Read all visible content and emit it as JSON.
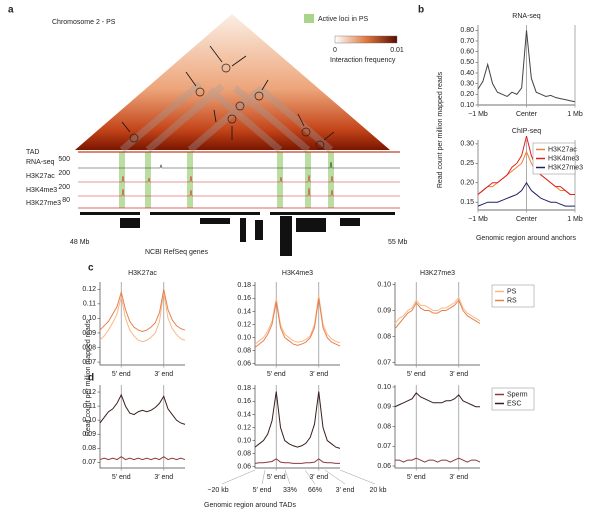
{
  "panel_labels": [
    "a",
    "b",
    "c",
    "d"
  ],
  "panel_a": {
    "title": "Chromosome 2 - PS",
    "legend": "Active loci in PS",
    "colorbar_min": "0",
    "colorbar_max": "0.01",
    "colorbar_label": "Interaction frequency",
    "tracks": [
      "TAD",
      "RNA-seq",
      "H3K27ac",
      "H3K4me3",
      "H3K27me3"
    ],
    "track_scales": [
      "500",
      "200",
      "200",
      "80"
    ],
    "start": "48 Mb",
    "end": "55 Mb",
    "genes": "NCBI RefSeq genes"
  },
  "panel_b": {
    "ylabel": "Read count per million mapped reads",
    "xlabel": "Genomic region around anchors"
  },
  "panel_cd": {
    "ylabel": "Read count per million mapped reads",
    "xlabel": "Genomic region around TADs",
    "region_ticks": [
      "−20 kb",
      "5′ end",
      "33%",
      "66%",
      "3′ end",
      "20 kb"
    ]
  },
  "chart_data": [
    {
      "type": "line",
      "title": "RNA-seq",
      "x": [
        0,
        2,
        4,
        6,
        8,
        10,
        12,
        14,
        16,
        18,
        20,
        22,
        24,
        26,
        28,
        30,
        32,
        34,
        36,
        38,
        40
      ],
      "xlim": [
        0,
        40
      ],
      "xticks": [
        {
          "value": 0,
          "label": "−1 Mb"
        },
        {
          "value": 20,
          "label": "Center"
        },
        {
          "value": 40,
          "label": "1 Mb"
        }
      ],
      "ylim": [
        0.1,
        0.85
      ],
      "yticks": [
        {
          "value": 0.1,
          "label": "0.10"
        },
        {
          "value": 0.2,
          "label": "0.20"
        },
        {
          "value": 0.3,
          "label": "0.30"
        },
        {
          "value": 0.4,
          "label": "0.40"
        },
        {
          "value": 0.5,
          "label": "0.50"
        },
        {
          "value": 0.6,
          "label": "0.60"
        },
        {
          "value": 0.7,
          "label": "0.70"
        },
        {
          "value": 0.8,
          "label": "0.80"
        }
      ],
      "series": [
        {
          "name": "RNA-seq",
          "color": "#444444",
          "values": [
            0.25,
            0.32,
            0.48,
            0.3,
            0.22,
            0.2,
            0.18,
            0.22,
            0.2,
            0.26,
            0.8,
            0.35,
            0.22,
            0.2,
            0.18,
            0.19,
            0.17,
            0.16,
            0.15,
            0.14,
            0.13
          ]
        }
      ]
    },
    {
      "type": "line",
      "title": "ChIP-seq",
      "legend": "upper right",
      "x": [
        0,
        2,
        4,
        6,
        8,
        10,
        12,
        14,
        16,
        18,
        20,
        22,
        24,
        26,
        28,
        30,
        32,
        34,
        36,
        38,
        40
      ],
      "xlim": [
        0,
        40
      ],
      "xticks": [
        {
          "value": 0,
          "label": "−1 Mb"
        },
        {
          "value": 20,
          "label": "Center"
        },
        {
          "value": 40,
          "label": "1 Mb"
        }
      ],
      "ylim": [
        0.13,
        0.31
      ],
      "yticks": [
        0.15,
        {
          "value": 0.2,
          "label": "0.20"
        },
        0.25,
        {
          "value": 0.3,
          "label": "0.30"
        }
      ],
      "series": [
        {
          "name": "H3K27ac",
          "color": "#f08030",
          "values": [
            0.17,
            0.18,
            0.19,
            0.19,
            0.2,
            0.21,
            0.22,
            0.23,
            0.24,
            0.25,
            0.28,
            0.25,
            0.23,
            0.22,
            0.21,
            0.2,
            0.19,
            0.18,
            0.18,
            0.17,
            0.17
          ]
        },
        {
          "name": "H3K4me3",
          "color": "#e02020",
          "values": [
            0.17,
            0.18,
            0.19,
            0.2,
            0.2,
            0.21,
            0.22,
            0.24,
            0.25,
            0.27,
            0.32,
            0.27,
            0.24,
            0.22,
            0.21,
            0.2,
            0.19,
            0.19,
            0.18,
            0.17,
            0.17
          ]
        },
        {
          "name": "H3K27me3",
          "color": "#202060",
          "values": [
            0.14,
            0.145,
            0.15,
            0.15,
            0.15,
            0.155,
            0.16,
            0.165,
            0.17,
            0.18,
            0.2,
            0.18,
            0.17,
            0.16,
            0.155,
            0.15,
            0.15,
            0.145,
            0.14,
            0.14,
            0.14
          ]
        }
      ]
    },
    {
      "type": "line",
      "title": "H3K27ac",
      "x": [
        0,
        2,
        4,
        6,
        8,
        10,
        12,
        14,
        16,
        18,
        20,
        22,
        24,
        26,
        28,
        30,
        32,
        34,
        36,
        38,
        40
      ],
      "xlim": [
        0,
        40
      ],
      "xticks": [
        {
          "value": 10,
          "label": "5′ end"
        },
        {
          "value": 30,
          "label": "3′ end"
        }
      ],
      "ylim": [
        0.068,
        0.125
      ],
      "yticks": [
        0.07,
        0.08,
        0.09,
        {
          "value": 0.1,
          "label": "0.10"
        },
        0.11,
        0.12
      ],
      "series": [
        {
          "name": "PS",
          "color": "#f8b98a",
          "values": [
            0.085,
            0.088,
            0.092,
            0.097,
            0.103,
            0.115,
            0.1,
            0.092,
            0.088,
            0.085,
            0.084,
            0.085,
            0.087,
            0.09,
            0.098,
            0.118,
            0.1,
            0.093,
            0.089,
            0.086,
            0.085
          ]
        },
        {
          "name": "RS",
          "color": "#e8804e",
          "values": [
            0.092,
            0.095,
            0.098,
            0.103,
            0.108,
            0.118,
            0.106,
            0.098,
            0.094,
            0.092,
            0.091,
            0.092,
            0.094,
            0.097,
            0.104,
            0.12,
            0.106,
            0.099,
            0.095,
            0.093,
            0.092
          ]
        }
      ]
    },
    {
      "type": "line",
      "title": "H3K4me3",
      "x": [
        0,
        2,
        4,
        6,
        8,
        10,
        12,
        14,
        16,
        18,
        20,
        22,
        24,
        26,
        28,
        30,
        32,
        34,
        36,
        38,
        40
      ],
      "xlim": [
        0,
        40
      ],
      "xticks": [
        {
          "value": 10,
          "label": "5′ end"
        },
        {
          "value": 30,
          "label": "3′ end"
        }
      ],
      "ylim": [
        0.058,
        0.185
      ],
      "yticks": [
        0.06,
        0.08,
        {
          "value": 0.1,
          "label": "0.10"
        },
        0.12,
        0.14,
        0.16,
        0.18
      ],
      "series": [
        {
          "name": "PS",
          "color": "#f8b98a",
          "values": [
            0.09,
            0.095,
            0.1,
            0.11,
            0.125,
            0.16,
            0.12,
            0.105,
            0.1,
            0.095,
            0.093,
            0.094,
            0.097,
            0.103,
            0.12,
            0.165,
            0.12,
            0.105,
            0.098,
            0.094,
            0.092
          ]
        },
        {
          "name": "RS",
          "color": "#e8804e",
          "values": [
            0.085,
            0.09,
            0.095,
            0.105,
            0.12,
            0.155,
            0.115,
            0.1,
            0.095,
            0.09,
            0.088,
            0.09,
            0.093,
            0.1,
            0.115,
            0.16,
            0.115,
            0.1,
            0.093,
            0.09,
            0.087
          ]
        }
      ]
    },
    {
      "type": "line",
      "title": "H3K27me3",
      "legend": "outside right",
      "x": [
        0,
        2,
        4,
        6,
        8,
        10,
        12,
        14,
        16,
        18,
        20,
        22,
        24,
        26,
        28,
        30,
        32,
        34,
        36,
        38,
        40
      ],
      "xlim": [
        0,
        40
      ],
      "xticks": [
        {
          "value": 10,
          "label": "5′ end"
        },
        {
          "value": 30,
          "label": "3′ end"
        }
      ],
      "ylim": [
        0.069,
        0.101
      ],
      "yticks": [
        0.07,
        0.08,
        0.09,
        {
          "value": 0.1,
          "label": "0.10"
        }
      ],
      "series": [
        {
          "name": "PS",
          "color": "#f8b98a",
          "values": [
            0.085,
            0.087,
            0.088,
            0.09,
            0.091,
            0.094,
            0.092,
            0.092,
            0.091,
            0.09,
            0.09,
            0.091,
            0.091,
            0.092,
            0.093,
            0.095,
            0.091,
            0.089,
            0.088,
            0.087,
            0.086
          ]
        },
        {
          "name": "RS",
          "color": "#e8804e",
          "values": [
            0.083,
            0.085,
            0.087,
            0.089,
            0.09,
            0.093,
            0.091,
            0.09,
            0.09,
            0.089,
            0.089,
            0.09,
            0.09,
            0.091,
            0.092,
            0.094,
            0.09,
            0.088,
            0.087,
            0.086,
            0.085
          ]
        }
      ]
    },
    {
      "type": "line",
      "x": [
        0,
        2,
        4,
        6,
        8,
        10,
        12,
        14,
        16,
        18,
        20,
        22,
        24,
        26,
        28,
        30,
        32,
        34,
        36,
        38,
        40
      ],
      "xlim": [
        0,
        40
      ],
      "xticks": [
        {
          "value": 10,
          "label": "5′ end"
        },
        {
          "value": 30,
          "label": "3′ end"
        }
      ],
      "ylim": [
        0.066,
        0.125
      ],
      "yticks": [
        0.07,
        0.08,
        0.09,
        {
          "value": 0.1,
          "label": "0.10"
        },
        0.11,
        0.12
      ],
      "series": [
        {
          "name": "Sperm",
          "color": "#8b3a3a",
          "values": [
            0.072,
            0.073,
            0.072,
            0.073,
            0.072,
            0.074,
            0.072,
            0.073,
            0.072,
            0.073,
            0.072,
            0.073,
            0.072,
            0.073,
            0.072,
            0.074,
            0.072,
            0.073,
            0.072,
            0.073,
            0.072
          ]
        },
        {
          "name": "ESC",
          "color": "#3b1d1d",
          "values": [
            0.098,
            0.102,
            0.106,
            0.108,
            0.112,
            0.118,
            0.11,
            0.105,
            0.104,
            0.106,
            0.107,
            0.106,
            0.107,
            0.109,
            0.112,
            0.117,
            0.108,
            0.104,
            0.1,
            0.098,
            0.097
          ]
        }
      ]
    },
    {
      "type": "line",
      "x": [
        0,
        2,
        4,
        6,
        8,
        10,
        12,
        14,
        16,
        18,
        20,
        22,
        24,
        26,
        28,
        30,
        32,
        34,
        36,
        38,
        40
      ],
      "xlim": [
        0,
        40
      ],
      "xticks": [
        {
          "value": 10,
          "label": "5′ end"
        },
        {
          "value": 30,
          "label": "3′ end"
        }
      ],
      "ylim": [
        0.058,
        0.185
      ],
      "yticks": [
        0.06,
        0.08,
        {
          "value": 0.1,
          "label": "0.10"
        },
        0.12,
        0.14,
        0.16,
        0.18
      ],
      "series": [
        {
          "name": "Sperm",
          "color": "#8b3a3a",
          "values": [
            0.065,
            0.066,
            0.066,
            0.067,
            0.068,
            0.072,
            0.067,
            0.066,
            0.066,
            0.065,
            0.065,
            0.065,
            0.066,
            0.066,
            0.067,
            0.072,
            0.067,
            0.066,
            0.066,
            0.065,
            0.065
          ]
        },
        {
          "name": "ESC",
          "color": "#3b1d1d",
          "values": [
            0.09,
            0.095,
            0.1,
            0.11,
            0.13,
            0.175,
            0.12,
            0.1,
            0.095,
            0.092,
            0.09,
            0.092,
            0.096,
            0.105,
            0.125,
            0.175,
            0.12,
            0.1,
            0.095,
            0.09,
            0.088
          ]
        }
      ]
    },
    {
      "type": "line",
      "legend": "outside right",
      "x": [
        0,
        2,
        4,
        6,
        8,
        10,
        12,
        14,
        16,
        18,
        20,
        22,
        24,
        26,
        28,
        30,
        32,
        34,
        36,
        38,
        40
      ],
      "xlim": [
        0,
        40
      ],
      "xticks": [
        {
          "value": 10,
          "label": "5′ end"
        },
        {
          "value": 30,
          "label": "3′ end"
        }
      ],
      "ylim": [
        0.059,
        0.101
      ],
      "yticks": [
        0.06,
        0.07,
        0.08,
        0.09,
        {
          "value": 0.1,
          "label": "0.10"
        }
      ],
      "series": [
        {
          "name": "Sperm",
          "color": "#8b3a3a",
          "values": [
            0.063,
            0.063,
            0.062,
            0.063,
            0.063,
            0.064,
            0.063,
            0.062,
            0.063,
            0.063,
            0.062,
            0.063,
            0.063,
            0.062,
            0.063,
            0.064,
            0.063,
            0.062,
            0.063,
            0.063,
            0.062
          ]
        },
        {
          "name": "ESC",
          "color": "#3b1d1d",
          "values": [
            0.09,
            0.091,
            0.092,
            0.093,
            0.094,
            0.097,
            0.095,
            0.094,
            0.093,
            0.092,
            0.092,
            0.092,
            0.093,
            0.093,
            0.094,
            0.096,
            0.093,
            0.092,
            0.091,
            0.09,
            0.09
          ]
        }
      ]
    }
  ]
}
